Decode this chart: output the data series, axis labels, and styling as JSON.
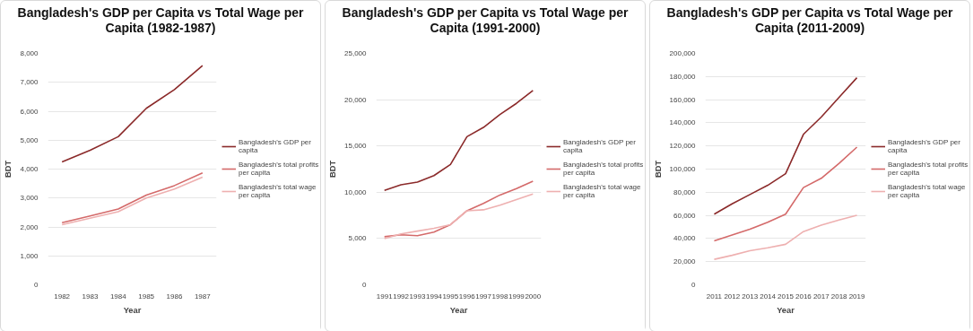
{
  "chart_data": [
    {
      "type": "line",
      "title": "Bangladesh's GDP per Capita vs Total Wage per Capita (1982-1987)",
      "xlabel": "Year",
      "ylabel": "BDT",
      "categories": [
        "1982",
        "1983",
        "1984",
        "1985",
        "1986",
        "1987"
      ],
      "ylim": [
        0,
        8000
      ],
      "yticks": [
        0,
        {
          "value": 1000,
          "label": "1,000"
        },
        {
          "value": 2000,
          "label": "2,000"
        },
        {
          "value": 3000,
          "label": "3,000"
        },
        {
          "value": 4000,
          "label": "4,000"
        },
        {
          "value": 5000,
          "label": "5,000"
        },
        {
          "value": 6000,
          "label": "6,000"
        },
        {
          "value": 7000,
          "label": "7,000"
        },
        {
          "value": 8000,
          "label": "8,000"
        }
      ],
      "grid": "y",
      "legend": "right",
      "series": [
        {
          "name": "Bangladesh's GDP per capita",
          "color": "#8b2a2a",
          "values": [
            4250,
            4650,
            5120,
            6100,
            6750,
            7580
          ]
        },
        {
          "name": "Bangladesh's total profits per capita",
          "color": "#d46a6a",
          "values": [
            2150,
            2380,
            2620,
            3100,
            3430,
            3870
          ]
        },
        {
          "name": "Bangladesh's total wage per capita",
          "color": "#eeb0b0",
          "values": [
            2080,
            2300,
            2530,
            3000,
            3310,
            3720
          ]
        }
      ]
    },
    {
      "type": "line",
      "title": "Bangladesh's GDP per Capita vs Total Wage per Capita (1991-2000)",
      "xlabel": "Year",
      "ylabel": "BDT",
      "categories": [
        "1991",
        "1992",
        "1993",
        "1994",
        "1995",
        "1996",
        "1997",
        "1998",
        "1999",
        "2000"
      ],
      "ylim": [
        0,
        25000
      ],
      "yticks": [
        0,
        {
          "value": 5000,
          "label": "5,000"
        },
        {
          "value": 10000,
          "label": "10,000"
        },
        {
          "value": 15000,
          "label": "15,000"
        },
        {
          "value": 20000,
          "label": "20,000"
        },
        {
          "value": 25000,
          "label": "25,000"
        }
      ],
      "grid": "y",
      "legend": "right",
      "series": [
        {
          "name": "Bangladesh's GDP per capita",
          "color": "#8b2a2a",
          "values": [
            10200,
            10800,
            11100,
            11800,
            13000,
            16000,
            17000,
            18400,
            19600,
            21000
          ]
        },
        {
          "name": "Bangladesh's total profits per capita",
          "color": "#d46a6a",
          "values": [
            5200,
            5400,
            5300,
            5700,
            6500,
            8000,
            8800,
            9700,
            10400,
            11200
          ]
        },
        {
          "name": "Bangladesh's total wage per capita",
          "color": "#eeb0b0",
          "values": [
            5000,
            5500,
            5800,
            6100,
            6500,
            8000,
            8100,
            8600,
            9200,
            9800
          ]
        }
      ]
    },
    {
      "type": "line",
      "title": "Bangladesh's GDP per Capita vs Total Wage per Capita (2011-2009)",
      "xlabel": "Year",
      "ylabel": "BDT",
      "categories": [
        "2011",
        "2012",
        "2013",
        "2014",
        "2015",
        "2016",
        "2017",
        "2018",
        "2019"
      ],
      "ylim": [
        0,
        200000
      ],
      "yticks": [
        0,
        {
          "value": 20000,
          "label": "20,000"
        },
        {
          "value": 40000,
          "label": "40,000"
        },
        {
          "value": 60000,
          "label": "60,000"
        },
        {
          "value": 80000,
          "label": "80,000"
        },
        {
          "value": 100000,
          "label": "100,000"
        },
        {
          "value": 120000,
          "label": "120,000"
        },
        {
          "value": 140000,
          "label": "140,000"
        },
        {
          "value": 160000,
          "label": "160,000"
        },
        {
          "value": 180000,
          "label": "180,000"
        },
        {
          "value": 200000,
          "label": "200,000"
        }
      ],
      "grid": "y",
      "legend": "right",
      "series": [
        {
          "name": "Bangladesh's GDP per capita",
          "color": "#8b2a2a",
          "values": [
            61000,
            70000,
            78000,
            86000,
            96000,
            130000,
            145000,
            162000,
            179000
          ]
        },
        {
          "name": "Bangladesh's total profits per capita",
          "color": "#d46a6a",
          "values": [
            38000,
            43000,
            48000,
            54000,
            61000,
            84000,
            92000,
            105000,
            119000
          ]
        },
        {
          "name": "Bangladesh's total wage per capita",
          "color": "#eeb0b0",
          "values": [
            22000,
            25500,
            29500,
            32000,
            35000,
            46000,
            51500,
            56000,
            60000
          ]
        }
      ]
    }
  ]
}
